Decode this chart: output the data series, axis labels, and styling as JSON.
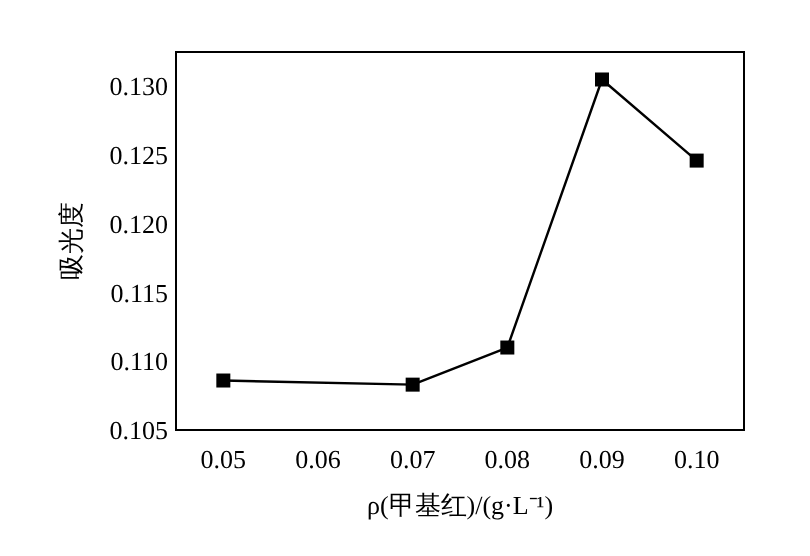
{
  "chart_data": {
    "type": "line",
    "xlabel": "ρ(甲基红)/(g·L⁻¹)",
    "ylabel": "吸光度",
    "x": [
      0.05,
      0.07,
      0.08,
      0.09,
      0.1
    ],
    "series": [
      {
        "color": "#000000",
        "values": [
          0.1086,
          0.1083,
          0.111,
          0.1305,
          0.1246
        ]
      }
    ],
    "xlim": [
      0.045,
      0.105
    ],
    "xticks": [
      {
        "value": 0.05,
        "label": "0.05"
      },
      {
        "value": 0.06,
        "label": "0.06"
      },
      {
        "value": 0.07,
        "label": "0.07"
      },
      {
        "value": 0.08,
        "label": "0.08"
      },
      {
        "value": 0.09,
        "label": "0.09"
      },
      {
        "value": 0.1,
        "label": "0.10"
      }
    ],
    "ylim": [
      0.105,
      0.1325
    ],
    "yticks": [
      {
        "value": 0.105,
        "label": "0.105"
      },
      {
        "value": 0.11,
        "label": "0.110"
      },
      {
        "value": 0.115,
        "label": "0.115"
      },
      {
        "value": 0.12,
        "label": "0.120"
      },
      {
        "value": 0.125,
        "label": "0.125"
      },
      {
        "value": 0.13,
        "label": "0.130"
      }
    ],
    "marker": "square",
    "line_style": "solid",
    "grid": false
  }
}
